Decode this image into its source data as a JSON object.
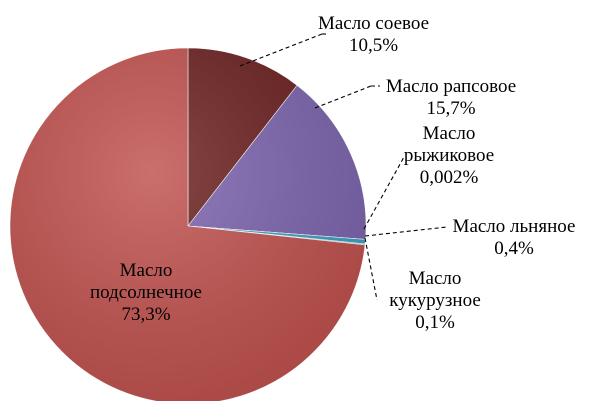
{
  "chart_data": {
    "type": "pie",
    "slices": [
      {
        "name": "Масло соевое",
        "value": 10.5,
        "label": "10,5%",
        "color": "#6b1f1f"
      },
      {
        "name": "Масло рапсовое",
        "value": 15.7,
        "label": "15,7%",
        "color": "#7b63ad"
      },
      {
        "name": "Масло рыжиковое",
        "value": 0.002,
        "label": "0,002%",
        "color": "#4c7f9a"
      },
      {
        "name": "Масло льняное",
        "value": 0.4,
        "label": "0,4%",
        "color": "#3aa0c3"
      },
      {
        "name": "Масло кукурузное",
        "value": 0.1,
        "label": "0,1%",
        "color": "#b7c9e0"
      },
      {
        "name": "Масло подсолнечное",
        "value": 73.3,
        "label": "73,3%",
        "color": "#c0504d"
      }
    ],
    "label_lines": {
      "soy": [
        "Масло соевое",
        "10,5%"
      ],
      "rapeseed": [
        "Масло рапсовое",
        "15,7%"
      ],
      "camelina": [
        "Масло",
        "рыжиковое",
        "0,002%"
      ],
      "flax": [
        "Масло льняное",
        "0,4%"
      ],
      "corn": [
        "Масло",
        "кукурузное",
        "0,1%"
      ],
      "sunflower": [
        "Масло",
        "подсолнечное",
        "73,3%"
      ]
    }
  }
}
